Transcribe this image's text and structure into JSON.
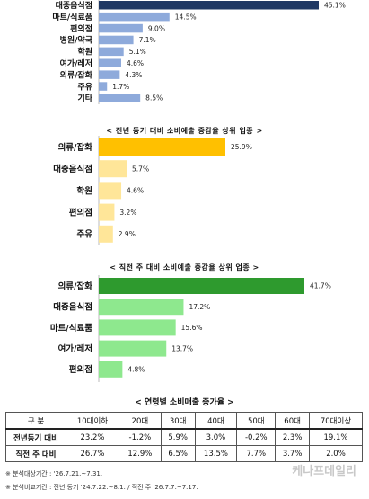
{
  "chart_data": [
    {
      "type": "bar",
      "orientation": "horizontal",
      "title": "",
      "categories": [
        "대중음식점",
        "마트/식료품",
        "편의점",
        "병원/약국",
        "학원",
        "여가/레저",
        "의류/잡화",
        "주유",
        "기타"
      ],
      "values": [
        45.1,
        14.5,
        9.0,
        7.1,
        5.1,
        4.6,
        4.3,
        1.7,
        8.5
      ],
      "value_labels": [
        "45.1%",
        "14.5%",
        "9.0%",
        "7.1%",
        "5.1%",
        "4.6%",
        "4.3%",
        "1.7%",
        "8.5%"
      ],
      "colors": [
        "#1f3864",
        "#8eaadb",
        "#8eaadb",
        "#8eaadb",
        "#8eaadb",
        "#8eaadb",
        "#8eaadb",
        "#8eaadb",
        "#8eaadb"
      ]
    },
    {
      "type": "bar",
      "orientation": "horizontal",
      "title": "< 전년 동기 대비 소비예출 증감율 상위 업종 >",
      "categories": [
        "의류/잡화",
        "대중음식점",
        "학원",
        "편의점",
        "주유"
      ],
      "values": [
        25.9,
        5.7,
        4.6,
        3.2,
        2.9
      ],
      "value_labels": [
        "25.9%",
        "5.7%",
        "4.6%",
        "3.2%",
        "2.9%"
      ],
      "colors": [
        "#ffc000",
        "#ffe699",
        "#ffe699",
        "#ffe699",
        "#ffe699"
      ]
    },
    {
      "type": "bar",
      "orientation": "horizontal",
      "title": "< 직전 주 대비 소비예출 증감율 상위 업종 >",
      "categories": [
        "의류/잡화",
        "대중음식점",
        "마트/식료품",
        "여가/레저",
        "편의점"
      ],
      "values": [
        41.7,
        17.2,
        15.6,
        13.7,
        4.8
      ],
      "value_labels": [
        "41.7%",
        "17.2%",
        "15.6%",
        "13.7%",
        "4.8%"
      ],
      "colors": [
        "#2e9a2e",
        "#8ee88e",
        "#8ee88e",
        "#8ee88e",
        "#8ee88e"
      ]
    }
  ],
  "table": {
    "title": "< 연령별 소비매출 증가율 >",
    "columns": [
      "구 분",
      "10대이하",
      "20대",
      "30대",
      "40대",
      "50대",
      "60대",
      "70대이상"
    ],
    "rows": [
      {
        "label": "전년동기 대비",
        "values": [
          "23.2%",
          "-1.2%",
          "5.9%",
          "3.0%",
          "-0.2%",
          "2.3%",
          "19.1%"
        ]
      },
      {
        "label": "직전 주 대비",
        "values": [
          "26.7%",
          "12.9%",
          "6.5%",
          "13.5%",
          "7.7%",
          "3.7%",
          "2.0%"
        ]
      }
    ]
  },
  "notes": [
    "※ 분석대상기간 : '26.7.21.~7.31.",
    "※ 분석비교기간 : 전년 동기 '24.7.22.~8.1. / 직전 주 '26.7.7.~7.17."
  ],
  "watermark": "케나프데일리"
}
